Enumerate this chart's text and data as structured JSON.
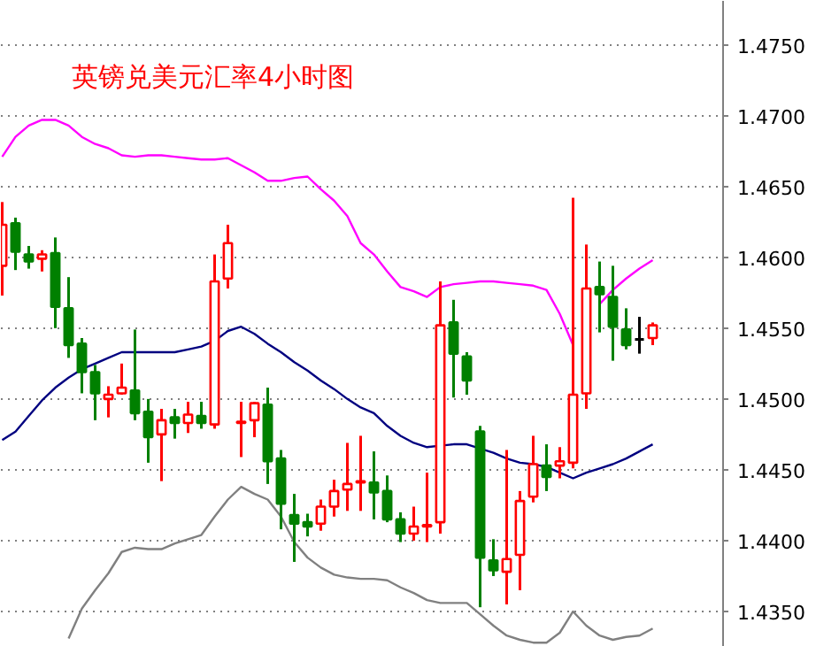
{
  "chart_data": {
    "type": "candlestick",
    "title": "英镑兑美元汇率4小时图",
    "categories": [
      null,
      null,
      null,
      null,
      null,
      null,
      null,
      null,
      null,
      null,
      null,
      null,
      null,
      null,
      null,
      null,
      null,
      null,
      null,
      null,
      null,
      null,
      null,
      null,
      null,
      null,
      null,
      null,
      null,
      null,
      null,
      null,
      null,
      null,
      null,
      null,
      null,
      null,
      null,
      null,
      null,
      null,
      null,
      null,
      null,
      null,
      null,
      null,
      null,
      null
    ],
    "ohlc": [
      [
        1.4594,
        1.4639,
        1.4573,
        1.4623
      ],
      [
        1.4624,
        1.4628,
        1.4591,
        1.4604
      ],
      [
        1.4602,
        1.4608,
        1.4592,
        1.4597
      ],
      [
        1.4599,
        1.4605,
        1.459,
        1.4602
      ],
      [
        1.4603,
        1.4614,
        1.455,
        1.4565
      ],
      [
        1.4564,
        1.4586,
        1.4529,
        1.4538
      ],
      [
        1.4539,
        1.4543,
        1.4504,
        1.4519
      ],
      [
        1.4519,
        1.4524,
        1.4485,
        1.4504
      ],
      [
        1.45,
        1.4509,
        1.4487,
        1.4503
      ],
      [
        1.4504,
        1.4525,
        1.4503,
        1.4508
      ],
      [
        1.4506,
        1.4549,
        1.4485,
        1.449
      ],
      [
        1.4491,
        1.45,
        1.4455,
        1.4473
      ],
      [
        1.4475,
        1.4493,
        1.4442,
        1.4485
      ],
      [
        1.4487,
        1.4493,
        1.4472,
        1.4483
      ],
      [
        1.4483,
        1.4498,
        1.4476,
        1.4489
      ],
      [
        1.4488,
        1.4498,
        1.4479,
        1.4483
      ],
      [
        1.4482,
        1.4602,
        1.4479,
        1.4583
      ],
      [
        1.4585,
        1.4623,
        1.4578,
        1.461
      ],
      [
        1.4483,
        1.4498,
        1.4459,
        1.4484
      ],
      [
        1.4485,
        1.4498,
        1.4473,
        1.4497
      ],
      [
        1.4496,
        1.4508,
        1.444,
        1.4456
      ],
      [
        1.4458,
        1.4464,
        1.4408,
        1.4426
      ],
      [
        1.4418,
        1.4433,
        1.4385,
        1.4412
      ],
      [
        1.4413,
        1.4419,
        1.4403,
        1.441
      ],
      [
        1.4412,
        1.4429,
        1.4407,
        1.4424
      ],
      [
        1.4424,
        1.4443,
        1.4417,
        1.4435
      ],
      [
        1.4436,
        1.4469,
        1.4421,
        1.444
      ],
      [
        1.4441,
        1.4474,
        1.4421,
        1.4442
      ],
      [
        1.4441,
        1.4463,
        1.4415,
        1.4434
      ],
      [
        1.4435,
        1.4446,
        1.4413,
        1.4415
      ],
      [
        1.4415,
        1.442,
        1.4399,
        1.4405
      ],
      [
        1.4405,
        1.4424,
        1.44,
        1.441
      ],
      [
        1.441,
        1.4448,
        1.4399,
        1.4411
      ],
      [
        1.4413,
        1.4583,
        1.4405,
        1.4552
      ],
      [
        1.4554,
        1.457,
        1.4501,
        1.4532
      ],
      [
        1.453,
        1.4533,
        1.4503,
        1.4513
      ],
      [
        1.4477,
        1.4481,
        1.4353,
        1.4388
      ],
      [
        1.4386,
        1.4401,
        1.4375,
        1.4379
      ],
      [
        1.4378,
        1.4464,
        1.4355,
        1.4387
      ],
      [
        1.439,
        1.4435,
        1.4365,
        1.4428
      ],
      [
        1.4431,
        1.4474,
        1.4427,
        1.4454
      ],
      [
        1.4453,
        1.4468,
        1.4435,
        1.4445
      ],
      [
        1.4453,
        1.4466,
        1.4444,
        1.4456
      ],
      [
        1.4455,
        1.4642,
        1.4451,
        1.4503
      ],
      [
        1.4504,
        1.4609,
        1.4493,
        1.4578
      ],
      [
        1.4579,
        1.4597,
        1.4547,
        1.4574
      ],
      [
        1.4572,
        1.4594,
        1.4527,
        1.4551
      ],
      [
        1.4549,
        1.4564,
        1.4535,
        1.4538
      ],
      [
        1.4542,
        1.4558,
        1.4532,
        1.4542
      ],
      [
        1.4543,
        1.4554,
        1.4538,
        1.4552
      ]
    ],
    "colors": [
      "#ff0000",
      "#008000",
      "#008000",
      "#ff0000",
      "#008000",
      "#008000",
      "#008000",
      "#008000",
      "#ff0000",
      "#ff0000",
      "#008000",
      "#008000",
      "#ff0000",
      "#008000",
      "#ff0000",
      "#008000",
      "#ff0000",
      "#ff0000",
      "#ff0000",
      "#ff0000",
      "#008000",
      "#008000",
      "#008000",
      "#008000",
      "#ff0000",
      "#ff0000",
      "#ff0000",
      "#ff0000",
      "#008000",
      "#008000",
      "#008000",
      "#ff0000",
      "#ff0000",
      "#ff0000",
      "#008000",
      "#008000",
      "#008000",
      "#008000",
      "#ff0000",
      "#ff0000",
      "#ff0000",
      "#008000",
      "#ff0000",
      "#ff0000",
      "#ff0000",
      "#008000",
      "#008000",
      "#008000",
      "#000000",
      "#ff0000"
    ],
    "series": [
      {
        "type": "line",
        "color": "#ff00ff",
        "values": [
          1.4671,
          1.4685,
          1.4693,
          1.4697,
          1.4697,
          1.4693,
          1.4685,
          1.468,
          1.4677,
          1.4672,
          1.4671,
          1.4672,
          1.4672,
          1.4671,
          1.467,
          1.4669,
          1.4669,
          1.467,
          1.4665,
          1.466,
          1.4654,
          1.4654,
          1.4656,
          1.4657,
          1.4648,
          1.464,
          1.4629,
          1.461,
          1.4602,
          1.459,
          1.4579,
          1.4576,
          1.4572,
          1.4579,
          1.4581,
          1.4582,
          1.4583,
          1.4583,
          1.4582,
          1.4581,
          1.458,
          1.4577,
          1.456,
          1.4538,
          null,
          1.4567,
          1.4577,
          1.4585,
          1.4592,
          1.4598
        ]
      },
      {
        "type": "line",
        "color": "#000080",
        "values": [
          1.4471,
          1.4477,
          1.4488,
          1.4499,
          1.4508,
          1.4515,
          1.4521,
          1.4525,
          1.4529,
          1.4533,
          1.4533,
          1.4533,
          1.4533,
          1.4533,
          1.4535,
          1.4537,
          1.4541,
          1.4548,
          1.4551,
          1.4546,
          1.4539,
          1.4533,
          1.4526,
          1.452,
          1.4513,
          1.4507,
          1.45,
          1.4494,
          1.449,
          1.4481,
          1.4474,
          1.4469,
          1.4466,
          1.4467,
          1.4468,
          1.4468,
          1.4465,
          1.4462,
          1.4458,
          1.4455,
          1.4454,
          1.4452,
          1.4448,
          1.4444,
          1.4448,
          1.4451,
          1.4454,
          1.4458,
          1.4463,
          1.4468
        ]
      },
      {
        "type": "line",
        "color": "#808080",
        "values": [
          null,
          null,
          null,
          null,
          null,
          1.4331,
          1.4352,
          1.4365,
          1.4377,
          1.4392,
          1.4395,
          1.4394,
          1.4394,
          1.4398,
          1.4401,
          1.4404,
          1.4417,
          1.4429,
          1.4438,
          1.4433,
          1.4429,
          1.4417,
          1.4399,
          1.4388,
          1.4381,
          1.4376,
          1.4374,
          1.4373,
          1.4373,
          1.4372,
          1.4367,
          1.4363,
          1.4358,
          1.4356,
          1.4356,
          1.4356,
          1.4348,
          1.434,
          1.4333,
          1.433,
          1.4328,
          1.4328,
          1.4335,
          1.435,
          1.434,
          1.4333,
          1.433,
          1.4332,
          1.4333,
          1.4338
        ]
      }
    ],
    "ylim": [
      1.4325,
      1.4781
    ],
    "yticks": [
      {
        "value": 1.435,
        "label": "1.4350"
      },
      {
        "value": 1.44,
        "label": "1.4400"
      },
      {
        "value": 1.445,
        "label": "1.4450"
      },
      {
        "value": 1.45,
        "label": "1.4500"
      },
      {
        "value": 1.455,
        "label": "1.4550"
      },
      {
        "value": 1.46,
        "label": "1.4600"
      },
      {
        "value": 1.465,
        "label": "1.4650"
      },
      {
        "value": 1.47,
        "label": "1.4700"
      },
      {
        "value": 1.475,
        "label": "1.4750"
      }
    ],
    "grid": "y",
    "tick_labels": "y"
  }
}
